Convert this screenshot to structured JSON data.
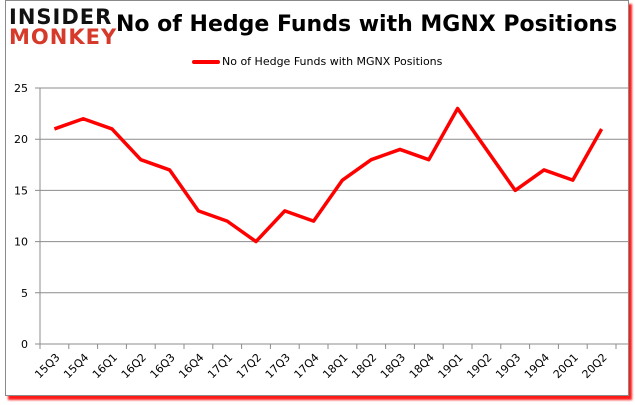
{
  "logo": {
    "line1": "INSIDER",
    "line2": "MONKEY"
  },
  "chart_data": {
    "type": "line",
    "title": "No of Hedge Funds with MGNX Positions",
    "categories": [
      "15Q3",
      "15Q4",
      "16Q1",
      "16Q2",
      "16Q3",
      "16Q4",
      "17Q1",
      "17Q2",
      "17Q3",
      "17Q4",
      "18Q1",
      "18Q2",
      "18Q3",
      "18Q4",
      "19Q1",
      "19Q2",
      "19Q3",
      "19Q4",
      "20Q1",
      "20Q2"
    ],
    "series": [
      {
        "name": "No of Hedge Funds with MGNX Positions",
        "color": "#ff0000",
        "values": [
          21,
          22,
          21,
          18,
          17,
          13,
          12,
          10,
          13,
          12,
          16,
          18,
          19,
          18,
          23,
          19,
          15,
          17,
          16,
          21
        ]
      }
    ],
    "yticks": [
      0,
      5,
      10,
      15,
      20,
      25
    ],
    "ylim": [
      0,
      25
    ],
    "grid": true,
    "legend": "top"
  }
}
